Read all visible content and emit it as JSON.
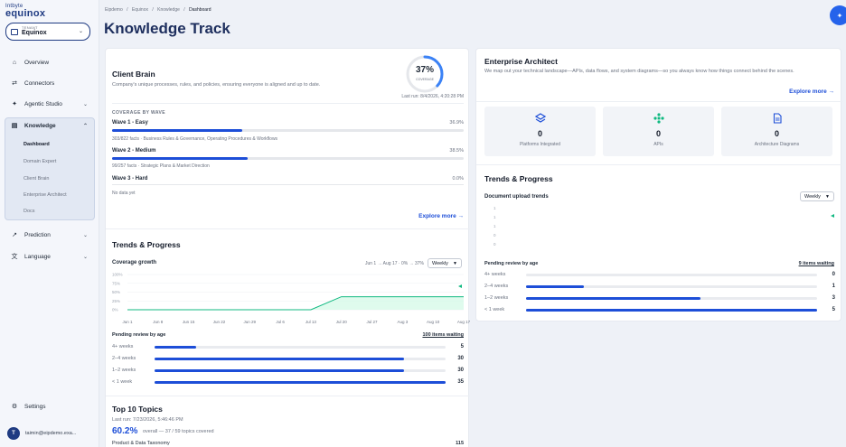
{
  "brand": {
    "line1": "Intbyte",
    "line2": "equinox"
  },
  "tenant": {
    "label": "TENANT",
    "value": "Equinox"
  },
  "nav": {
    "overview": "Overview",
    "connectors": "Connectors",
    "agentic_studio": "Agentic Studio",
    "knowledge": "Knowledge",
    "sub": [
      "Dashboard",
      "Domain Expert",
      "Client Brain",
      "Enterprise Architect",
      "Docs"
    ],
    "prediction": "Prediction",
    "language": "Language",
    "settings": "Settings"
  },
  "user": {
    "initial": "T",
    "email": "taimin@eipdemo.exa..."
  },
  "breadcrumb": [
    "Eipdemo",
    "/",
    "Equinox",
    "/",
    "Knowledge",
    "/",
    "Dashboard"
  ],
  "page_title": "Knowledge Track",
  "client_brain": {
    "title": "Client Brain",
    "description": "Company's unique processes, rules, and policies, ensuring everyone is aligned and up to date.",
    "coverage_pct": "37%",
    "coverage_label": "COVERAGE",
    "coverage_value": 0.37,
    "last_run": "Last run: 8/4/2026, 4:20:28 PM",
    "section_label": "COVERAGE BY WAVE",
    "waves": [
      {
        "name": "Wave 1 - Easy",
        "pct": "36.9%",
        "value": 0.369,
        "detail": "303/822 facts · Business Rules & Governance, Operating Procedures & Workflows"
      },
      {
        "name": "Wave 2 - Medium",
        "pct": "38.5%",
        "value": 0.385,
        "detail": "99/257 facts · Strategic Plans & Market Direction"
      },
      {
        "name": "Wave 3 - Hard",
        "pct": "0.0%",
        "value": 0,
        "detail": "No data yet"
      }
    ],
    "explore": "Explore more →"
  },
  "trends_left": {
    "title": "Trends & Progress",
    "chart_label": "Coverage growth",
    "summary": "Jun 1 → Aug 17 · 0% → 37%",
    "select": "Weekly",
    "pending_label": "Pending review by age",
    "pending_link": "100 items waiting",
    "pending": [
      {
        "label": "4+ weeks",
        "count": "5",
        "value": 5
      },
      {
        "label": "2–4 weeks",
        "count": "30",
        "value": 30
      },
      {
        "label": "1–2 weeks",
        "count": "30",
        "value": 30
      },
      {
        "label": "< 1 week",
        "count": "35",
        "value": 35
      }
    ]
  },
  "chart_data": {
    "type": "area",
    "title": "Coverage growth",
    "x": [
      "Jun 1",
      "Jun 8",
      "Jun 15",
      "Jun 22",
      "Jun 29",
      "Jul 6",
      "Jul 13",
      "Jul 20",
      "Jul 27",
      "Aug 3",
      "Aug 10",
      "Aug 17"
    ],
    "values": [
      0,
      0,
      0,
      0,
      0,
      0,
      0,
      37,
      37,
      37,
      37,
      37
    ],
    "y_ticks": [
      "100%",
      "75%",
      "50%",
      "25%",
      "0%"
    ],
    "ylim": [
      0,
      100
    ],
    "color": "#10b981"
  },
  "top_topics": {
    "title": "Top 10 Topics",
    "last_run": "Last run: 7/23/2026, 5:46:46 PM",
    "big": "60.2%",
    "summary": "overall — 37 / 59 topics covered",
    "first_topic": "Product & Data Taxonomy",
    "first_count": "115"
  },
  "enterprise": {
    "title": "Enterprise Architect",
    "description": "We map out your technical landscape—APIs, data flows, and system diagrams—so you always know how things connect behind the scenes.",
    "explore": "Explore more →",
    "stats": [
      {
        "icon": "layers-icon",
        "value": "0",
        "label": "Platforms Integrated"
      },
      {
        "icon": "api-icon",
        "value": "0",
        "label": "APIs"
      },
      {
        "icon": "document-icon",
        "value": "0",
        "label": "Architecture Diagrams"
      }
    ]
  },
  "trends_right": {
    "title": "Trends & Progress",
    "chart_label": "Document upload trends",
    "select": "Weekly",
    "y_ticks": [
      "1",
      "1",
      "1",
      "0",
      "0"
    ],
    "pending_label": "Pending review by age",
    "pending_link": "9 items waiting",
    "pending": [
      {
        "label": "4+ weeks",
        "count": "0",
        "value": 0
      },
      {
        "label": "2–4 weeks",
        "count": "1",
        "value": 1
      },
      {
        "label": "1–2 weeks",
        "count": "3",
        "value": 3
      },
      {
        "label": "< 1 week",
        "count": "5",
        "value": 5
      }
    ]
  },
  "colors": {
    "accent": "#1d4ed8",
    "brand": "#1e2f5e",
    "green": "#10b981"
  }
}
